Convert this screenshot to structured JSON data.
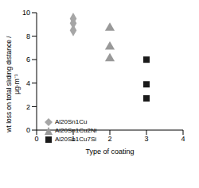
{
  "chart_data": {
    "type": "scatter",
    "x_label": "Type of coating",
    "y_label": "wt loss on total sliding distance / µg·m⁻¹",
    "xlim": [
      0,
      4
    ],
    "xticks": [
      0,
      1,
      2,
      3,
      4
    ],
    "ylim": [
      0,
      10
    ],
    "yticks": [
      0,
      2,
      4,
      6,
      8,
      10
    ],
    "grid": false,
    "legend": "lower left",
    "series": [
      {
        "name": "Al20Sn1Cu",
        "color": "#a6a6a6",
        "marker": "diamond",
        "x": [
          1,
          1,
          1
        ],
        "values": [
          9.5,
          9.1,
          8.5
        ]
      },
      {
        "name": "Al20Sn1Cu2Ni",
        "color": "#999999",
        "marker": "triangle",
        "x": [
          2,
          2,
          2
        ],
        "values": [
          8.7,
          7.1,
          6.1
        ]
      },
      {
        "name": "Al20Sn1Cu7Si",
        "color": "#1a1a1a",
        "marker": "square",
        "x": [
          3,
          3,
          3
        ],
        "values": [
          6.0,
          3.9,
          2.7
        ]
      }
    ]
  }
}
